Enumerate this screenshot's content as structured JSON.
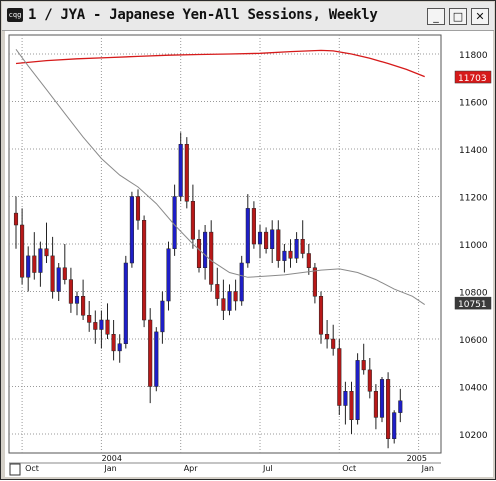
{
  "window": {
    "title": "1 / JYA - Japanese Yen-All Sessions, Weekly",
    "icon_label": "cqg",
    "buttons": {
      "minimize": "_",
      "maximize": "□",
      "close": "✕"
    }
  },
  "chart_data": {
    "type": "candlestick",
    "interval": "weekly",
    "ylim": [
      10120,
      11880
    ],
    "y_ticks": [
      "11800",
      "11600",
      "11400",
      "11200",
      "11000",
      "10800",
      "10600",
      "10400",
      "10200"
    ],
    "x_ticks": [
      {
        "label": "Oct",
        "i": 1
      },
      {
        "label": "Jan",
        "i": 14
      },
      {
        "label": "Apr",
        "i": 27
      },
      {
        "label": "Jul",
        "i": 40
      },
      {
        "label": "Oct",
        "i": 53
      },
      {
        "label": "Jan",
        "i": 66
      }
    ],
    "year_labels": [
      {
        "label": "2004",
        "i": 16
      },
      {
        "label": "2005",
        "i": 66
      }
    ],
    "last_price": {
      "label": "10751",
      "value": 10751
    },
    "ma_last": {
      "label": "11703",
      "value": 11703
    },
    "colors": {
      "up": "#1e1ec8",
      "down": "#b81818",
      "ma_long": "#d61a1a",
      "ma_short": "#8a8a8a",
      "grid": "#9a9a9a"
    },
    "candles": [
      [
        11130,
        11200,
        10980,
        11080
      ],
      [
        11080,
        11150,
        10830,
        10860
      ],
      [
        10860,
        10990,
        10800,
        10950
      ],
      [
        10950,
        11050,
        10850,
        10880
      ],
      [
        10880,
        11010,
        10820,
        10980
      ],
      [
        10980,
        11090,
        10920,
        10950
      ],
      [
        10950,
        11030,
        10770,
        10800
      ],
      [
        10800,
        10920,
        10760,
        10900
      ],
      [
        10900,
        11000,
        10830,
        10850
      ],
      [
        10850,
        10900,
        10710,
        10750
      ],
      [
        10750,
        10800,
        10700,
        10780
      ],
      [
        10780,
        10850,
        10680,
        10700
      ],
      [
        10700,
        10760,
        10630,
        10670
      ],
      [
        10670,
        10720,
        10580,
        10640
      ],
      [
        10640,
        10720,
        10560,
        10680
      ],
      [
        10680,
        10750,
        10600,
        10620
      ],
      [
        10620,
        10680,
        10510,
        10550
      ],
      [
        10550,
        10620,
        10500,
        10580
      ],
      [
        10580,
        10950,
        10560,
        10920
      ],
      [
        10920,
        11220,
        10900,
        11200
      ],
      [
        11200,
        11230,
        11060,
        11100
      ],
      [
        11100,
        11120,
        10650,
        10680
      ],
      [
        10680,
        10730,
        10330,
        10400
      ],
      [
        10400,
        10650,
        10380,
        10630
      ],
      [
        10630,
        10800,
        10580,
        10760
      ],
      [
        10760,
        11010,
        10720,
        10980
      ],
      [
        10980,
        11250,
        10950,
        11200
      ],
      [
        11200,
        11470,
        11180,
        11420
      ],
      [
        11420,
        11450,
        11150,
        11180
      ],
      [
        11180,
        11250,
        10980,
        11020
      ],
      [
        11020,
        11060,
        10880,
        10900
      ],
      [
        10900,
        11080,
        10850,
        11050
      ],
      [
        11050,
        11100,
        10800,
        10830
      ],
      [
        10830,
        10900,
        10740,
        10770
      ],
      [
        10770,
        10850,
        10680,
        10720
      ],
      [
        10720,
        10830,
        10700,
        10800
      ],
      [
        10800,
        10850,
        10720,
        10760
      ],
      [
        10760,
        10950,
        10740,
        10920
      ],
      [
        10920,
        11210,
        10900,
        11150
      ],
      [
        11150,
        11180,
        10980,
        11000
      ],
      [
        11000,
        11080,
        10940,
        11050
      ],
      [
        11050,
        11070,
        10960,
        10980
      ],
      [
        10980,
        11100,
        10920,
        11060
      ],
      [
        11060,
        11100,
        10900,
        10930
      ],
      [
        10930,
        11000,
        10880,
        10970
      ],
      [
        10970,
        11020,
        10900,
        10940
      ],
      [
        10940,
        11050,
        10920,
        11020
      ],
      [
        11020,
        11100,
        10940,
        10960
      ],
      [
        10960,
        11000,
        10870,
        10900
      ],
      [
        10900,
        10920,
        10750,
        10780
      ],
      [
        10780,
        10800,
        10580,
        10620
      ],
      [
        10620,
        10680,
        10560,
        10600
      ],
      [
        10600,
        10660,
        10530,
        10560
      ],
      [
        10560,
        10600,
        10280,
        10320
      ],
      [
        10320,
        10420,
        10240,
        10380
      ],
      [
        10380,
        10420,
        10200,
        10260
      ],
      [
        10260,
        10540,
        10240,
        10510
      ],
      [
        10510,
        10580,
        10450,
        10470
      ],
      [
        10470,
        10520,
        10350,
        10380
      ],
      [
        10380,
        10410,
        10220,
        10270
      ],
      [
        10270,
        10440,
        10250,
        10430
      ],
      [
        10430,
        10460,
        10140,
        10180
      ],
      [
        10180,
        10300,
        10160,
        10290
      ],
      [
        10290,
        10390,
        10250,
        10340
      ]
    ],
    "ma_long": [
      [
        0,
        11760
      ],
      [
        5,
        11772
      ],
      [
        10,
        11780
      ],
      [
        15,
        11785
      ],
      [
        20,
        11790
      ],
      [
        25,
        11795
      ],
      [
        30,
        11798
      ],
      [
        35,
        11800
      ],
      [
        40,
        11803
      ],
      [
        45,
        11810
      ],
      [
        50,
        11815
      ],
      [
        52,
        11813
      ],
      [
        55,
        11800
      ],
      [
        58,
        11782
      ],
      [
        61,
        11760
      ],
      [
        64,
        11735
      ],
      [
        67,
        11705
      ]
    ],
    "ma_short": [
      [
        0,
        11820
      ],
      [
        2,
        11750
      ],
      [
        5,
        11650
      ],
      [
        8,
        11550
      ],
      [
        11,
        11450
      ],
      [
        14,
        11360
      ],
      [
        17,
        11290
      ],
      [
        20,
        11240
      ],
      [
        23,
        11170
      ],
      [
        26,
        11080
      ],
      [
        29,
        11000
      ],
      [
        32,
        10930
      ],
      [
        35,
        10880
      ],
      [
        38,
        10860
      ],
      [
        41,
        10865
      ],
      [
        44,
        10870
      ],
      [
        47,
        10880
      ],
      [
        50,
        10890
      ],
      [
        53,
        10895
      ],
      [
        56,
        10880
      ],
      [
        59,
        10850
      ],
      [
        62,
        10810
      ],
      [
        65,
        10780
      ],
      [
        67,
        10745
      ]
    ]
  }
}
